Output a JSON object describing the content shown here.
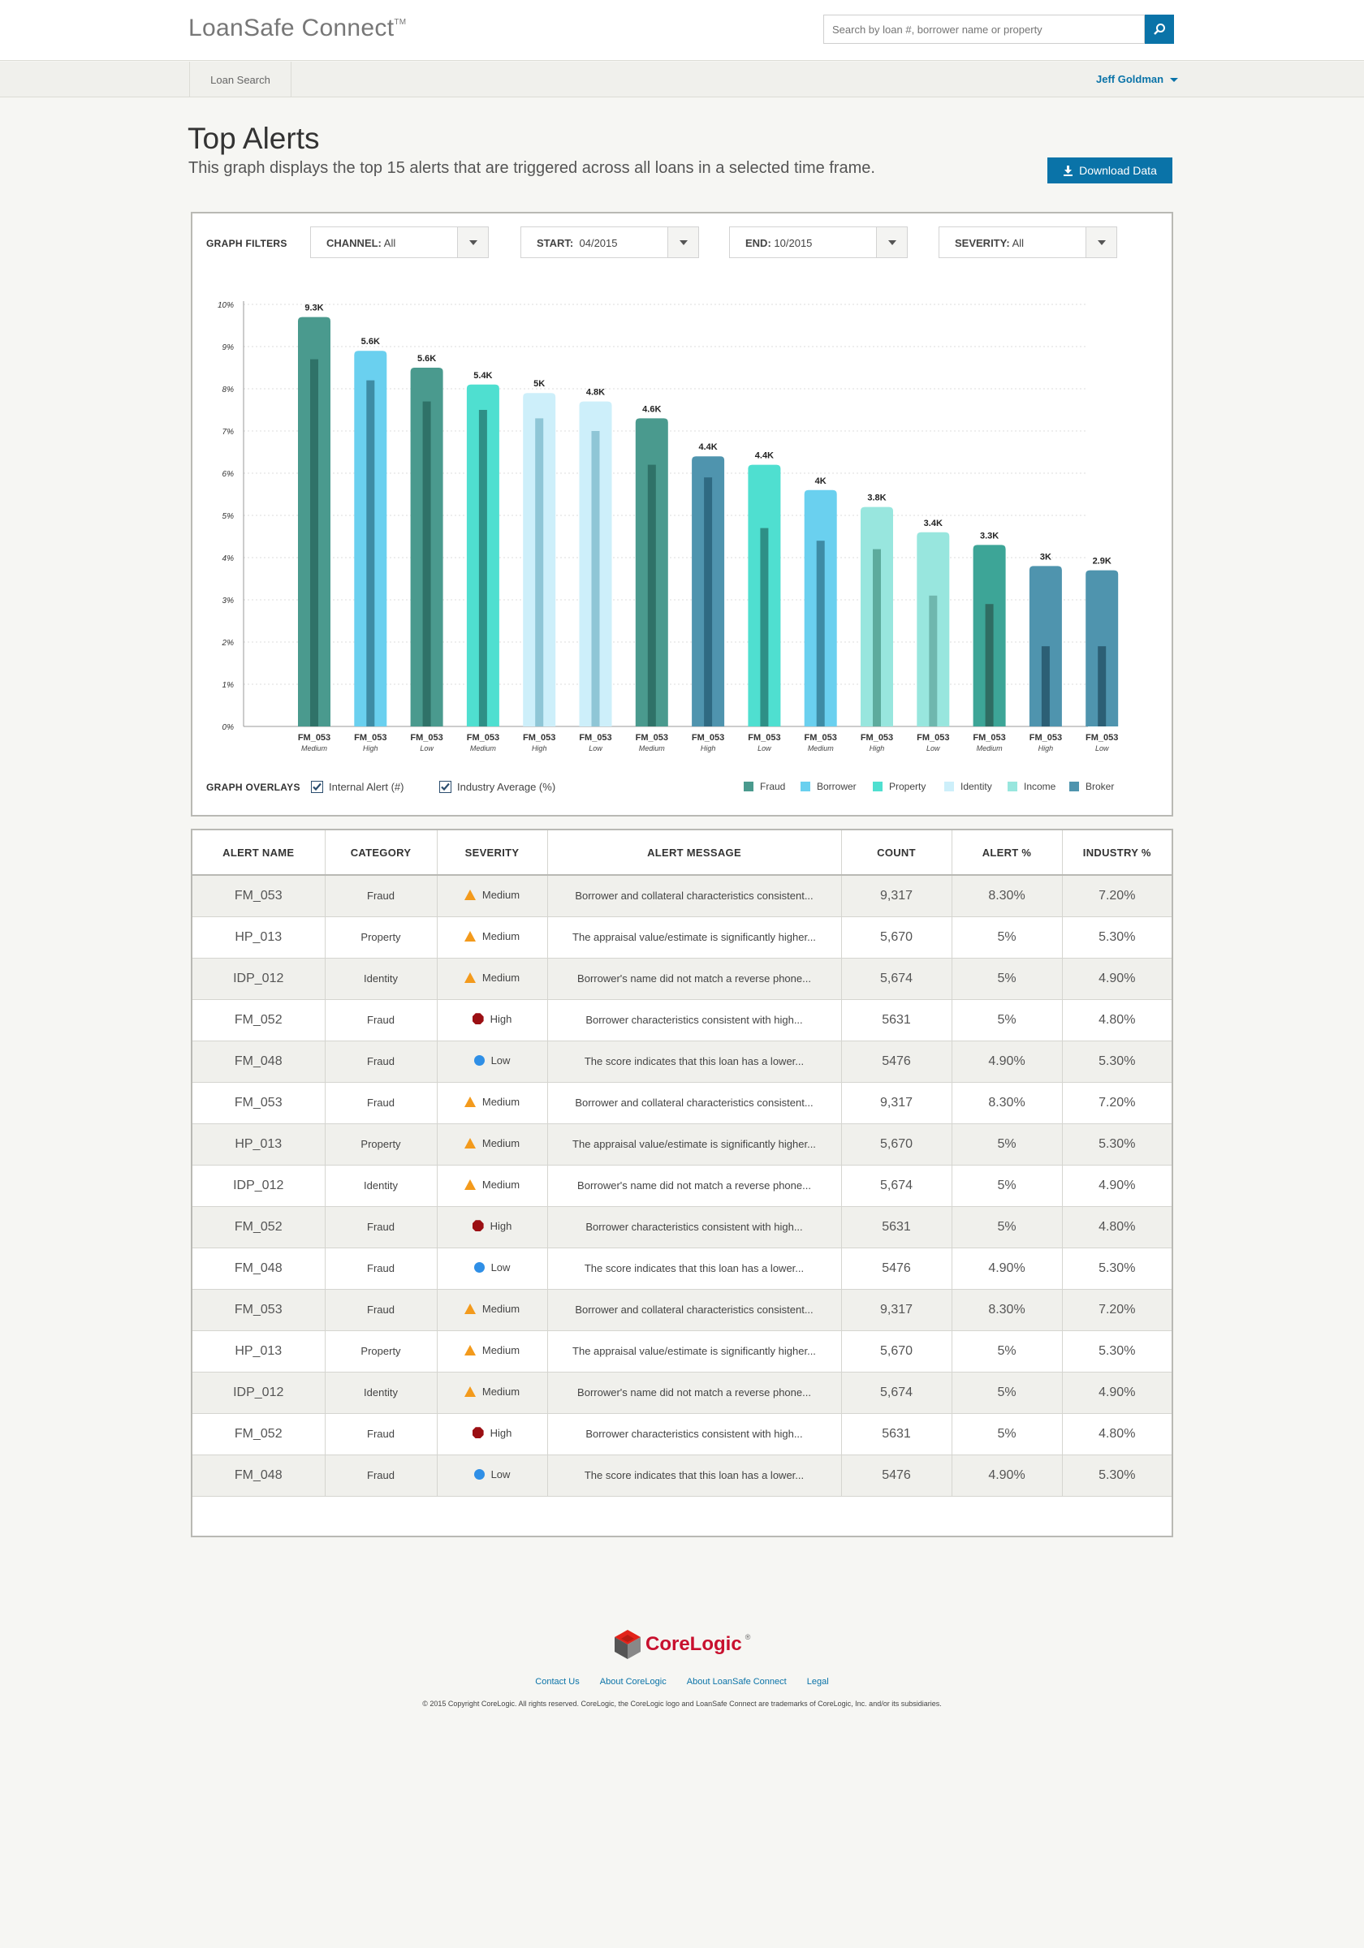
{
  "app": {
    "logo": "LoanSafe Connect",
    "logo_mark": "TM"
  },
  "search": {
    "placeholder": "Search by loan #, borrower name or property"
  },
  "nav": {
    "loan_search": "Loan Search",
    "user": "Jeff Goldman"
  },
  "page": {
    "title": "Top Alerts",
    "subtitle": "This graph displays the top 15 alerts that are triggered across all loans in a selected time frame.",
    "download": "Download Data"
  },
  "filters": {
    "label": "GRAPH FILTERS",
    "channel": {
      "key": "CHANNEL:",
      "value": "All"
    },
    "start": {
      "key": "START:",
      "value": "04/2015"
    },
    "end": {
      "key": "END:",
      "value": "10/2015"
    },
    "severity": {
      "key": "SEVERITY:",
      "value": "All"
    }
  },
  "overlays": {
    "label": "GRAPH OVERLAYS",
    "internal": "Internal Alert (#)",
    "industry": "Industry Average (%)"
  },
  "legend": [
    {
      "name": "Fraud",
      "color": "#4a9a8e"
    },
    {
      "name": "Borrower",
      "color": "#6ad0ef"
    },
    {
      "name": "Property",
      "color": "#4fdfd0"
    },
    {
      "name": "Identity",
      "color": "#cdeffa"
    },
    {
      "name": "Income",
      "color": "#98e6de"
    },
    {
      "name": "Broker",
      "color": "#4f94ae"
    }
  ],
  "chart_data": {
    "type": "bar",
    "y_ticks": [
      "0%",
      "1%",
      "2%",
      "3%",
      "4%",
      "5%",
      "6%",
      "7%",
      "8%",
      "9%",
      "10%"
    ],
    "ylim": [
      0,
      10
    ],
    "categories": [
      "FM_053",
      "FM_053",
      "FM_053",
      "FM_053",
      "FM_053",
      "FM_053",
      "FM_053",
      "FM_053",
      "FM_053",
      "FM_053",
      "FM_053",
      "FM_053",
      "FM_053",
      "FM_053",
      "FM_053"
    ],
    "sublabels": [
      "Medium",
      "High",
      "Low",
      "Medium",
      "High",
      "Low",
      "Medium",
      "High",
      "Low",
      "Medium",
      "High",
      "Low",
      "Medium",
      "High",
      "Low"
    ],
    "series": [
      {
        "name": "Alert %",
        "values": [
          9.7,
          8.9,
          8.5,
          8.1,
          7.9,
          7.7,
          7.3,
          6.4,
          6.2,
          5.6,
          5.2,
          4.6,
          4.3,
          3.8,
          3.7
        ]
      },
      {
        "name": "Industry Average %",
        "values": [
          8.7,
          8.2,
          7.7,
          7.5,
          7.3,
          7.0,
          6.2,
          5.9,
          4.7,
          4.4,
          4.2,
          3.1,
          2.9,
          1.9,
          1.9
        ]
      }
    ],
    "data_labels": [
      "9.3K",
      "5.6K",
      "5.6K",
      "5.4K",
      "5K",
      "4.8K",
      "4.6K",
      "4.4K",
      "4.4K",
      "4K",
      "3.8K",
      "3.4K",
      "3.3K",
      "3K",
      "2.9K"
    ],
    "bar_colors": [
      "#4a9a8e",
      "#6ad0ef",
      "#4a9a8e",
      "#4fdfd0",
      "#cdeffa",
      "#cdeffa",
      "#4a9a8e",
      "#4f94ae",
      "#4fdfd0",
      "#6ad0ef",
      "#98e6de",
      "#98e6de",
      "#3da597",
      "#4f94ae",
      "#4f94ae"
    ],
    "inner_colors": [
      "#2f7268",
      "#3e8ca5",
      "#2f7268",
      "#2e8f86",
      "#8fc6d6",
      "#8fc6d6",
      "#2f7268",
      "#2f6a82",
      "#2e8f86",
      "#3e8ca5",
      "#5dab9d",
      "#6fb7ae",
      "#2f6d63",
      "#2c5f75",
      "#2c5f75"
    ]
  },
  "table": {
    "headers": [
      "ALERT NAME",
      "CATEGORY",
      "SEVERITY",
      "ALERT MESSAGE",
      "COUNT",
      "ALERT %",
      "INDUSTRY %"
    ],
    "rows": [
      [
        "FM_053",
        "Fraud",
        "Medium",
        "Borrower and collateral characteristics consistent...",
        "9,317",
        "8.30%",
        "7.20%"
      ],
      [
        "HP_013",
        "Property",
        "Medium",
        "The appraisal value/estimate is significantly higher...",
        "5,670",
        "5%",
        "5.30%"
      ],
      [
        "IDP_012",
        "Identity",
        "Medium",
        "Borrower's name did not match a reverse phone...",
        "5,674",
        "5%",
        "4.90%"
      ],
      [
        "FM_052",
        "Fraud",
        "High",
        "Borrower characteristics consistent with high...",
        "5631",
        "5%",
        "4.80%"
      ],
      [
        "FM_048",
        "Fraud",
        "Low",
        "The score indicates that this loan has a lower...",
        "5476",
        "4.90%",
        "5.30%"
      ],
      [
        "FM_053",
        "Fraud",
        "Medium",
        "Borrower and collateral characteristics consistent...",
        "9,317",
        "8.30%",
        "7.20%"
      ],
      [
        "HP_013",
        "Property",
        "Medium",
        "The appraisal value/estimate is significantly higher...",
        "5,670",
        "5%",
        "5.30%"
      ],
      [
        "IDP_012",
        "Identity",
        "Medium",
        "Borrower's name did not match a reverse phone...",
        "5,674",
        "5%",
        "4.90%"
      ],
      [
        "FM_052",
        "Fraud",
        "High",
        "Borrower characteristics consistent with high...",
        "5631",
        "5%",
        "4.80%"
      ],
      [
        "FM_048",
        "Fraud",
        "Low",
        "The score indicates that this loan has a lower...",
        "5476",
        "4.90%",
        "5.30%"
      ],
      [
        "FM_053",
        "Fraud",
        "Medium",
        "Borrower and collateral characteristics consistent...",
        "9,317",
        "8.30%",
        "7.20%"
      ],
      [
        "HP_013",
        "Property",
        "Medium",
        "The appraisal value/estimate is significantly higher...",
        "5,670",
        "5%",
        "5.30%"
      ],
      [
        "IDP_012",
        "Identity",
        "Medium",
        "Borrower's name did not match a reverse phone...",
        "5,674",
        "5%",
        "4.90%"
      ],
      [
        "FM_052",
        "Fraud",
        "High",
        "Borrower characteristics consistent with high...",
        "5631",
        "5%",
        "4.80%"
      ],
      [
        "FM_048",
        "Fraud",
        "Low",
        "The score indicates that this loan has a lower...",
        "5476",
        "4.90%",
        "5.30%"
      ]
    ]
  },
  "footer": {
    "brand": "CoreLogic",
    "brand_mark": "®",
    "links": [
      "Contact Us",
      "About CoreLogic",
      "About LoanSafe Connect",
      "Legal"
    ],
    "copyright": "© 2015 Copyright CoreLogic. All rights reserved. CoreLogic, the CoreLogic logo and LoanSafe Connect are trademarks of CoreLogic, Inc. and/or its subsidiaries."
  },
  "colors": {
    "accent": "#0a73a8",
    "medium": "#f39a1c",
    "high": "#9b0f13",
    "low": "#2f8fe6"
  }
}
